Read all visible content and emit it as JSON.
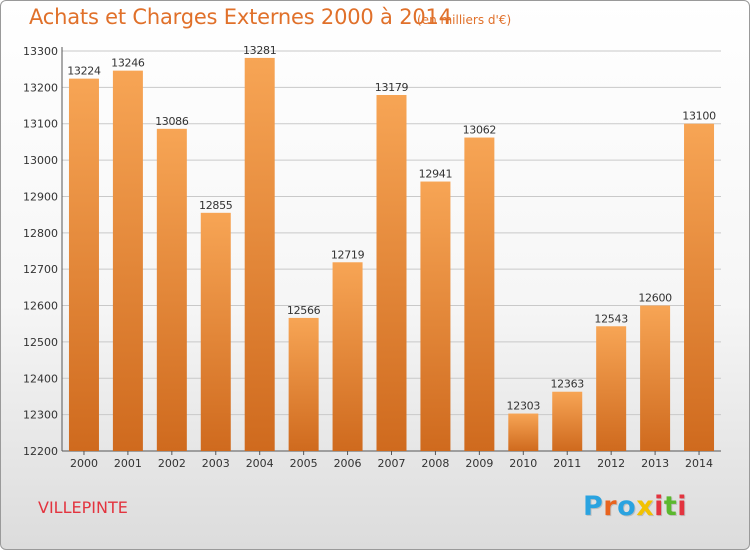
{
  "header": {
    "title": "Achats et Charges Externes 2000 à 2014",
    "subtitle": "(en milliers d'€)"
  },
  "footer": {
    "place": "VILLEPINTE"
  },
  "logo": {
    "text": "Proxiti",
    "letter_colors": [
      "#2aa3e0",
      "#e8641f",
      "#2aa3e0",
      "#f2c200",
      "#e3343f",
      "#5bb82e",
      "#e3343f"
    ]
  },
  "chart_data": {
    "type": "bar",
    "categories": [
      "2000",
      "2001",
      "2002",
      "2003",
      "2004",
      "2005",
      "2006",
      "2007",
      "2008",
      "2009",
      "2010",
      "2011",
      "2012",
      "2013",
      "2014"
    ],
    "values": [
      13224,
      13246,
      13086,
      12855,
      13281,
      12566,
      12719,
      13179,
      12941,
      13062,
      12303,
      12363,
      12543,
      12600,
      13100
    ],
    "title": "Achats et Charges Externes 2000 à 2014",
    "ylim": [
      12200,
      13300
    ],
    "yticks": [
      12200,
      12300,
      12400,
      12500,
      12600,
      12700,
      12800,
      12900,
      13000,
      13100,
      13200,
      13300
    ],
    "grid": true,
    "bar_color_top": "#f7a555",
    "bar_color_bottom": "#cf6a1e",
    "data_labels": true
  }
}
